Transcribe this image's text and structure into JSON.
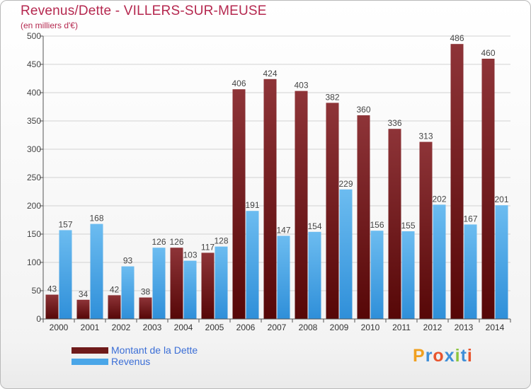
{
  "header": {
    "title": "Revenus/Dette - VILLERS-SUR-MEUSE",
    "subtitle": "(en milliers d'€)"
  },
  "colors": {
    "title": "#b5284f",
    "dette_top": "#8e3438",
    "dette_bottom": "#560707",
    "revenus_top": "#6cbcf0",
    "revenus_bottom": "#2f8fd9",
    "legend_text": "#3b6ed6"
  },
  "legend": {
    "items": [
      {
        "label": "Montant de la Dette",
        "color": "#6e1a1a"
      },
      {
        "label": "Revenus",
        "color": "#4aa6e8"
      }
    ]
  },
  "logo": {
    "letters": [
      "P",
      "r",
      "o",
      "x",
      "i",
      "t",
      "i"
    ],
    "colors": [
      "#f0a020",
      "#3f8fd8",
      "#e8542d",
      "#3f8fd8",
      "#8bc53f",
      "#3f8fd8",
      "#e8542d"
    ]
  },
  "chart_data": {
    "type": "bar",
    "title": "Revenus/Dette - VILLERS-SUR-MEUSE",
    "subtitle": "(en milliers d'€)",
    "categories": [
      "2000",
      "2001",
      "2002",
      "2003",
      "2004",
      "2005",
      "2006",
      "2007",
      "2008",
      "2009",
      "2010",
      "2011",
      "2012",
      "2013",
      "2014"
    ],
    "series": [
      {
        "name": "Montant de la Dette",
        "values": [
          43,
          34,
          42,
          38,
          126,
          117,
          406,
          424,
          403,
          382,
          360,
          336,
          313,
          486,
          460
        ]
      },
      {
        "name": "Revenus",
        "values": [
          157,
          168,
          93,
          126,
          103,
          128,
          191,
          147,
          154,
          229,
          156,
          155,
          202,
          167,
          201
        ]
      }
    ],
    "ylim": [
      0,
      500
    ],
    "yticks": [
      0,
      50,
      100,
      150,
      200,
      250,
      300,
      350,
      400,
      450,
      500
    ],
    "grid": true,
    "legend": "bottom-left"
  }
}
